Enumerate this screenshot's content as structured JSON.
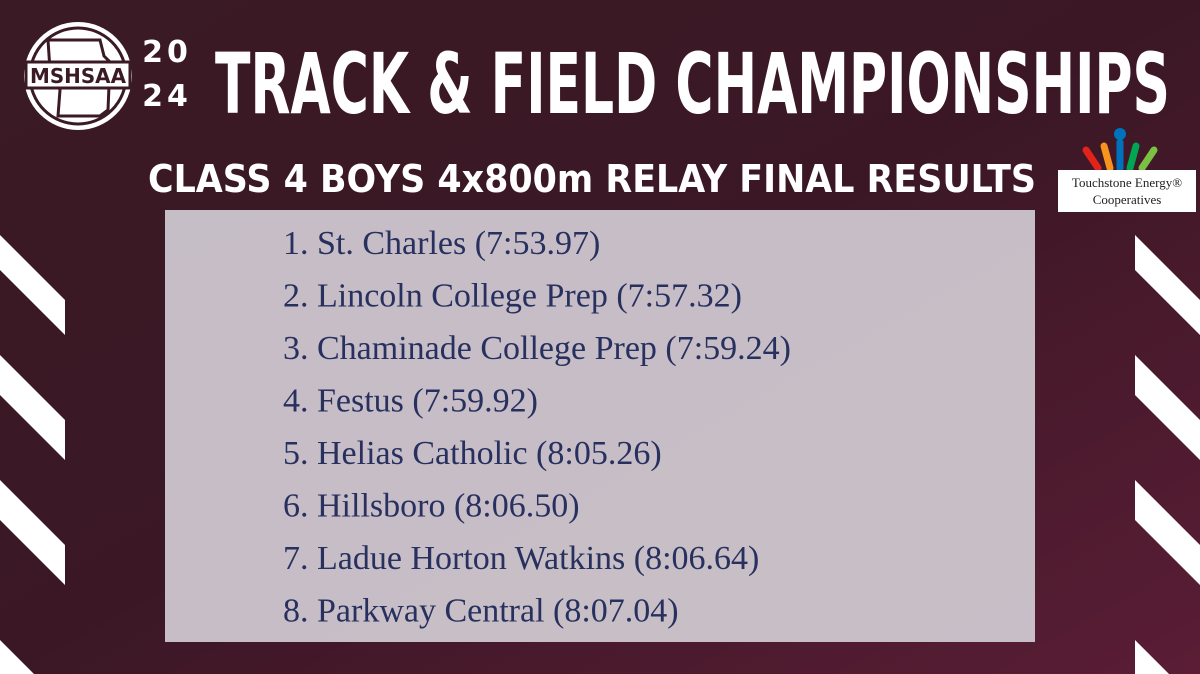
{
  "header": {
    "logo": "MSHSAA",
    "year": [
      "20",
      "24"
    ],
    "title": "TRACK & FIELD CHAMPIONSHIPS",
    "subtitle": "CLASS 4 BOYS 4x800m RELAY FINAL RESULTS"
  },
  "sponsor": {
    "name": "Touchstone Energy®",
    "line2": "Cooperatives"
  },
  "results": [
    "1. St. Charles (7:53.97)",
    "2. Lincoln College Prep (7:57.32)",
    "3. Chaminade College Prep (7:59.24)",
    "4. Festus (7:59.92)",
    "5. Helias Catholic (8:05.26)",
    "6. Hillsboro (8:06.50)",
    "7. Ladue Horton Watkins (8:06.64)",
    "8. Parkway Central (8:07.04)"
  ]
}
